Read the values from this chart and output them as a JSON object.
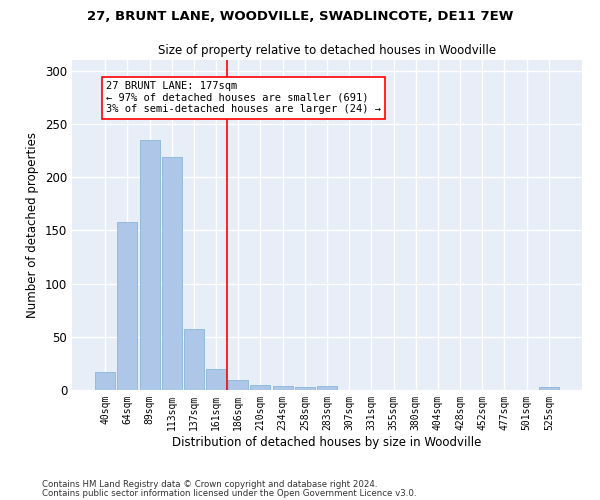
{
  "title": "27, BRUNT LANE, WOODVILLE, SWADLINCOTE, DE11 7EW",
  "subtitle": "Size of property relative to detached houses in Woodville",
  "xlabel": "Distribution of detached houses by size in Woodville",
  "ylabel": "Number of detached properties",
  "bar_color": "#aec6e8",
  "bar_edge_color": "#7aafd4",
  "background_color": "#e8eef8",
  "grid_color": "#ffffff",
  "categories": [
    "40sqm",
    "64sqm",
    "89sqm",
    "113sqm",
    "137sqm",
    "161sqm",
    "186sqm",
    "210sqm",
    "234sqm",
    "258sqm",
    "283sqm",
    "307sqm",
    "331sqm",
    "355sqm",
    "380sqm",
    "404sqm",
    "428sqm",
    "452sqm",
    "477sqm",
    "501sqm",
    "525sqm"
  ],
  "values": [
    17,
    158,
    235,
    219,
    57,
    20,
    9,
    5,
    4,
    3,
    4,
    0,
    0,
    0,
    0,
    0,
    0,
    0,
    0,
    0,
    3
  ],
  "ylim": [
    0,
    310
  ],
  "yticks": [
    0,
    50,
    100,
    150,
    200,
    250,
    300
  ],
  "property_line_x": 5.5,
  "property_label": "27 BRUNT LANE: 177sqm",
  "annotation_line1": "← 97% of detached houses are smaller (691)",
  "annotation_line2": "3% of semi-detached houses are larger (24) →",
  "footnote1": "Contains HM Land Registry data © Crown copyright and database right 2024.",
  "footnote2": "Contains public sector information licensed under the Open Government Licence v3.0."
}
